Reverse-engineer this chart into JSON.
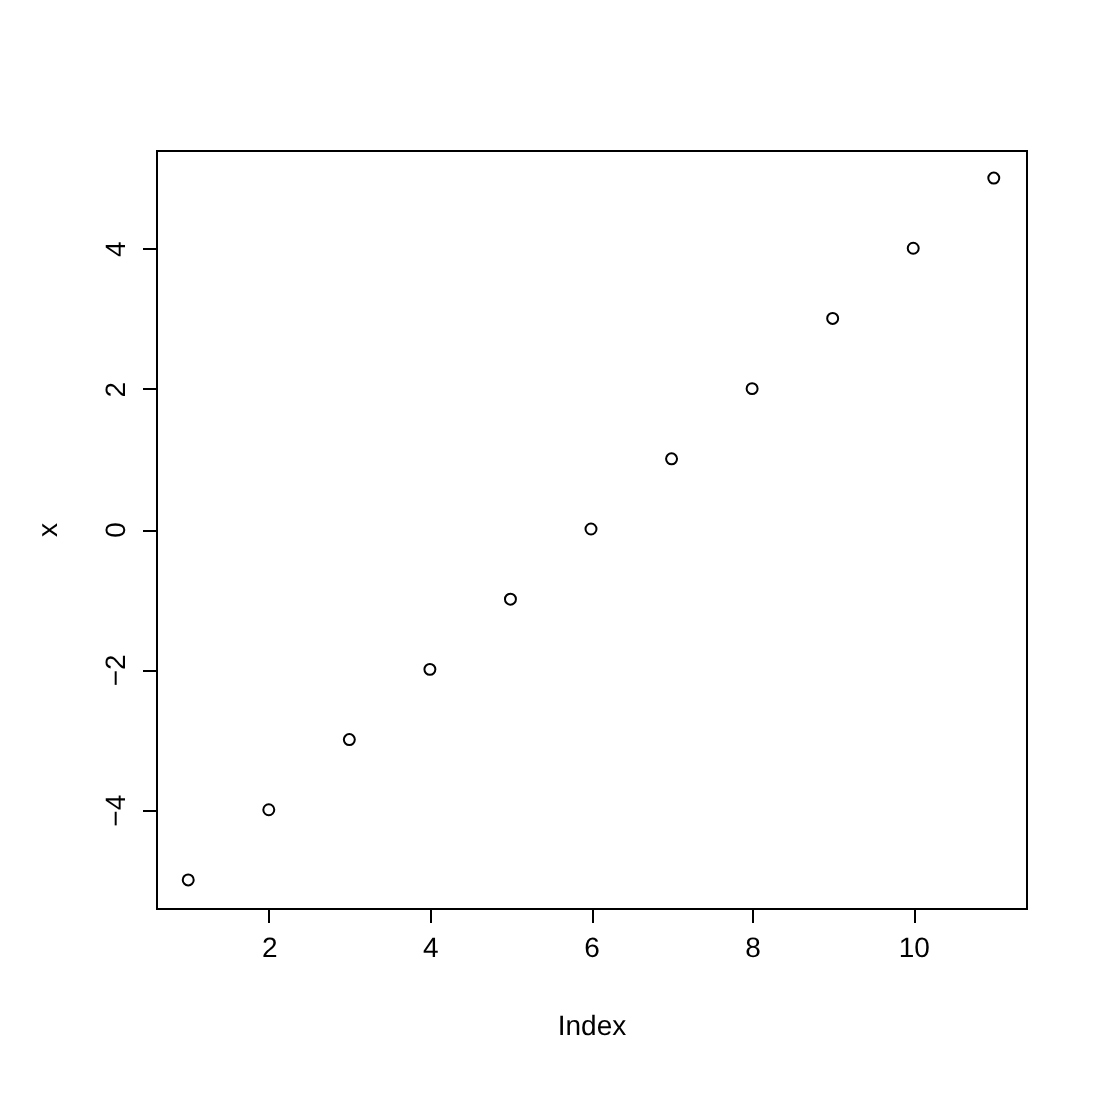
{
  "chart_data": {
    "type": "scatter",
    "x": [
      1,
      2,
      3,
      4,
      5,
      6,
      7,
      8,
      9,
      10,
      11
    ],
    "series": [
      {
        "color": "#000000",
        "values": [
          -5,
          -4,
          -3,
          -2,
          -1,
          0,
          1,
          2,
          3,
          4,
          5
        ]
      }
    ],
    "xlabel": "Index",
    "ylabel": "x",
    "xlim": [
      0.6,
      11.4
    ],
    "ylim": [
      -5.4,
      5.4
    ],
    "xticks": [
      2,
      4,
      6,
      8,
      10
    ],
    "yticks": [
      -4,
      -2,
      0,
      2,
      4
    ],
    "grid": false,
    "marker": "circle"
  }
}
